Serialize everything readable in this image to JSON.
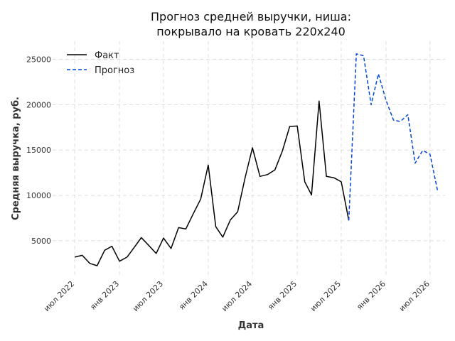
{
  "chart_data": {
    "type": "line",
    "title_line1": "Прогноз средней выручки, ниша:",
    "title_line2": "покрывало на кровать 220x240",
    "xlabel": "Дата",
    "ylabel": "Средняя выручка, руб.",
    "grid": true,
    "legend_position": "top-left",
    "ylim": [
      1000,
      27000
    ],
    "xlim": [
      "2022-04-01",
      "2026-09-01"
    ],
    "y_ticks": [
      5000,
      10000,
      15000,
      20000,
      25000
    ],
    "x_ticks": [
      {
        "date": "2022-07-01",
        "label": "июл 2022"
      },
      {
        "date": "2023-01-01",
        "label": "янв 2023"
      },
      {
        "date": "2023-07-01",
        "label": "июл 2023"
      },
      {
        "date": "2024-01-01",
        "label": "янв 2024"
      },
      {
        "date": "2024-07-01",
        "label": "июл 2024"
      },
      {
        "date": "2025-01-01",
        "label": "янв 2025"
      },
      {
        "date": "2025-07-01",
        "label": "июл 2025"
      },
      {
        "date": "2026-01-01",
        "label": "янв 2026"
      },
      {
        "date": "2026-07-01",
        "label": "июл 2026"
      }
    ],
    "series": [
      {
        "name": "Факт",
        "color": "#000000",
        "style": "solid",
        "points": [
          [
            "2022-07-01",
            3200
          ],
          [
            "2022-08-01",
            3400
          ],
          [
            "2022-09-01",
            2500
          ],
          [
            "2022-10-01",
            2250
          ],
          [
            "2022-11-01",
            3950
          ],
          [
            "2022-12-01",
            4400
          ],
          [
            "2023-01-01",
            2750
          ],
          [
            "2023-02-01",
            3200
          ],
          [
            "2023-03-01",
            4200
          ],
          [
            "2023-04-01",
            5350
          ],
          [
            "2023-05-01",
            4500
          ],
          [
            "2023-06-01",
            3600
          ],
          [
            "2023-07-01",
            5300
          ],
          [
            "2023-08-01",
            4150
          ],
          [
            "2023-09-01",
            6450
          ],
          [
            "2023-10-01",
            6300
          ],
          [
            "2023-11-01",
            8000
          ],
          [
            "2023-12-01",
            9600
          ],
          [
            "2024-01-01",
            13350
          ],
          [
            "2024-02-01",
            6550
          ],
          [
            "2024-03-01",
            5400
          ],
          [
            "2024-04-01",
            7300
          ],
          [
            "2024-05-01",
            8200
          ],
          [
            "2024-06-01",
            12000
          ],
          [
            "2024-07-01",
            15250
          ],
          [
            "2024-08-01",
            12100
          ],
          [
            "2024-09-01",
            12300
          ],
          [
            "2024-10-01",
            12800
          ],
          [
            "2024-11-01",
            14900
          ],
          [
            "2024-12-01",
            17600
          ],
          [
            "2025-01-01",
            17650
          ],
          [
            "2025-02-01",
            11500
          ],
          [
            "2025-03-01",
            10050
          ],
          [
            "2025-04-01",
            20400
          ],
          [
            "2025-05-01",
            12100
          ],
          [
            "2025-06-01",
            11950
          ],
          [
            "2025-07-01",
            11500
          ],
          [
            "2025-08-01",
            7250
          ]
        ]
      },
      {
        "name": "Прогноз",
        "color": "#0047d4",
        "style": "dashed",
        "points": [
          [
            "2025-08-01",
            7250
          ],
          [
            "2025-09-01",
            25600
          ],
          [
            "2025-10-01",
            25400
          ],
          [
            "2025-11-01",
            20000
          ],
          [
            "2025-12-01",
            23400
          ],
          [
            "2026-01-01",
            20500
          ],
          [
            "2026-02-01",
            18300
          ],
          [
            "2026-03-01",
            18150
          ],
          [
            "2026-04-01",
            18900
          ],
          [
            "2026-05-01",
            13550
          ],
          [
            "2026-06-01",
            14950
          ],
          [
            "2026-07-01",
            14550
          ],
          [
            "2026-08-01",
            10550
          ]
        ]
      }
    ]
  }
}
